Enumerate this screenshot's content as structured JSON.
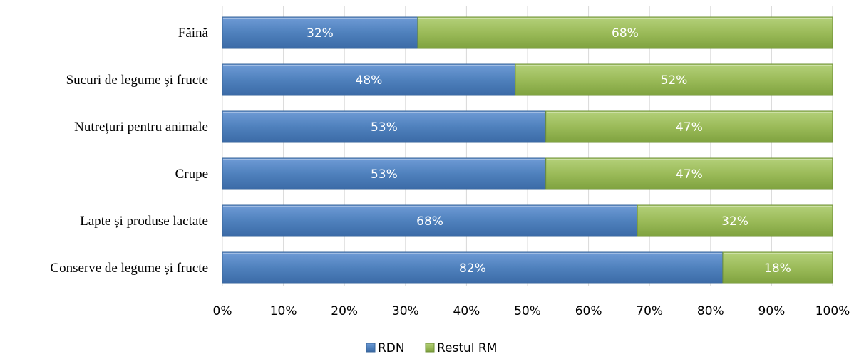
{
  "chart_data": {
    "type": "bar",
    "orientation": "horizontal",
    "stacked": "percent",
    "categories": [
      "Făină",
      "Sucuri de legume și fructe",
      "Nutrețuri pentru animale",
      "Crupe",
      "Lapte și produse lactate",
      "Conserve de legume și fructe"
    ],
    "series": [
      {
        "name": "RDN",
        "color": "#4f81bd",
        "values": [
          32,
          48,
          53,
          53,
          68,
          82
        ],
        "labels": [
          "32%",
          "48%",
          "53%",
          "53%",
          "68%",
          "82%"
        ]
      },
      {
        "name": "Restul RM",
        "color": "#9bbb59",
        "values": [
          68,
          52,
          47,
          47,
          32,
          18
        ],
        "labels": [
          "68%",
          "52%",
          "47%",
          "47%",
          "32%",
          "18%"
        ]
      }
    ],
    "x_ticks": [
      "0%",
      "10%",
      "20%",
      "30%",
      "40%",
      "50%",
      "60%",
      "70%",
      "80%",
      "90%",
      "100%"
    ],
    "xlim": [
      0,
      100
    ],
    "grid": "vertical",
    "legend_position": "bottom",
    "title": "",
    "xlabel": "",
    "ylabel": ""
  }
}
